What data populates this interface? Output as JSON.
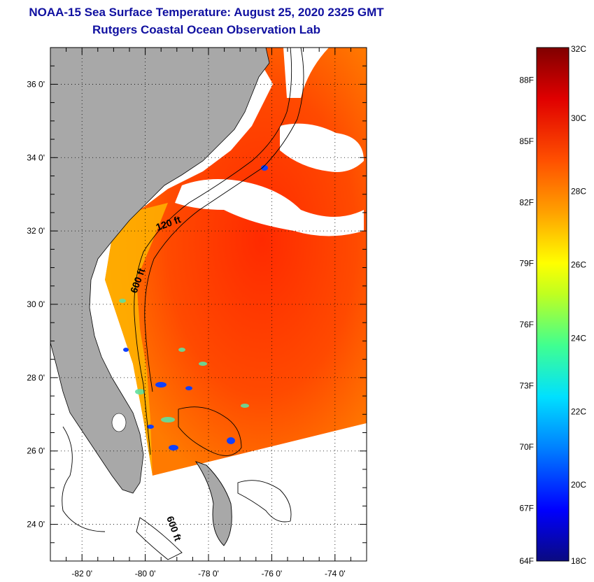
{
  "header": {
    "title": "NOAA-15 Sea Surface Temperature:  August 25, 2020 2325 GMT",
    "subtitle": "Rutgers Coastal Ocean Observation Lab"
  },
  "map": {
    "lon_ticks": [
      "-82 0'",
      "-80 0'",
      "-78 0'",
      "-76 0'",
      "-74 0'"
    ],
    "lat_ticks": [
      "36 0'",
      "34 0'",
      "32 0'",
      "30 0'",
      "28 0'",
      "26 0'",
      "24 0'"
    ],
    "lon_range": [
      -83,
      -73
    ],
    "lat_range": [
      23,
      37
    ],
    "contour_labels": [
      "120 ft",
      "600 ft",
      "600 ft"
    ],
    "colors": {
      "land": "#a8a8a8",
      "cloud": "#ffffff",
      "warm_sea": "#ff3a00",
      "mid_sea": "#ff7a00",
      "cool_sea": "#1030ff"
    }
  },
  "colorbar": {
    "celsius_labels": [
      "32C",
      "30C",
      "28C",
      "26C",
      "24C",
      "22C",
      "20C",
      "18C"
    ],
    "fahrenheit_labels": [
      "88F",
      "85F",
      "82F",
      "79F",
      "76F",
      "73F",
      "70F",
      "67F",
      "64F"
    ],
    "range_c": [
      18,
      32
    ],
    "stops": [
      "#0a0a80",
      "#0000ff",
      "#0080ff",
      "#00e0ff",
      "#40ff90",
      "#c0ff20",
      "#ffff00",
      "#ffa000",
      "#ff5000",
      "#e00000",
      "#800000"
    ]
  }
}
